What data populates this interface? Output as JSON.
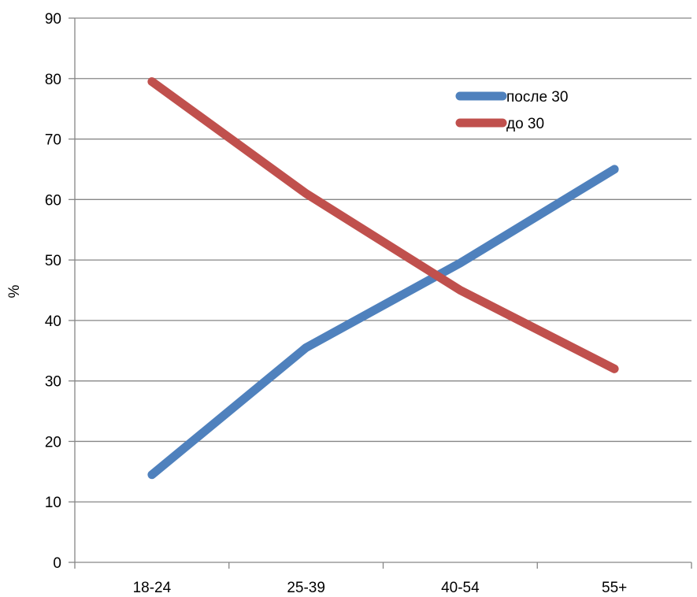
{
  "chart_data": {
    "type": "line",
    "categories": [
      "18-24",
      "25-39",
      "40-54",
      "55+"
    ],
    "series": [
      {
        "name": "после 30",
        "values": [
          14.5,
          35.5,
          49.5,
          65
        ],
        "color": "#4F81BD"
      },
      {
        "name": "до 30",
        "values": [
          79.5,
          61,
          45,
          32
        ],
        "color": "#C0504D"
      }
    ],
    "ylim": [
      0,
      90
    ],
    "yticks": [
      0,
      10,
      20,
      30,
      40,
      50,
      60,
      70,
      80,
      90
    ],
    "xlabel": "",
    "ylabel": "%",
    "grid": true,
    "legend": "top-right",
    "axis_color": "#868686",
    "grid_color": "#868686"
  }
}
